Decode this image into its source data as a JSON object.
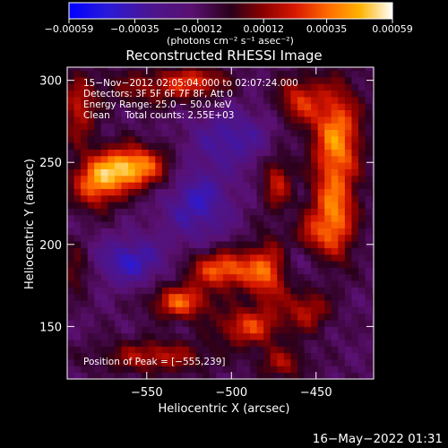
{
  "chart_data": {
    "type": "heatmap",
    "title": "Reconstructed RHESSI Image",
    "xlabel": "Heliocentric X (arcsec)",
    "ylabel": "Heliocentric Y (arcsec)",
    "xlim": [
      -597,
      -416
    ],
    "ylim": [
      118,
      308
    ],
    "x_ticks": [
      -550,
      -500,
      -450
    ],
    "x_tick_labels": [
      "−550",
      "−500",
      "−450"
    ],
    "y_ticks": [
      150,
      200,
      250,
      300
    ],
    "y_tick_labels": [
      "150",
      "200",
      "250",
      "300"
    ],
    "grid": false,
    "colorbar": {
      "colormap": "rhessi-blue-purple-red-yellow-white",
      "range": [
        -0.00059,
        0.00059
      ],
      "ticks": [
        -0.00059,
        -0.00035,
        -0.00012,
        0.00012,
        0.00035,
        0.00059
      ],
      "tick_labels": [
        "−0.00059",
        "−0.00035",
        "−0.00012",
        "0.00012",
        "0.00035",
        "0.00059"
      ],
      "units": "(photons cm⁻² s⁻¹ asec⁻²)",
      "placement": "top"
    },
    "annotations": [
      "15−Nov−2012 02:05:04.000 to 02:07:24.000",
      "Detectors: 3F 5F 6F 7F 8F, Att 0",
      "Energy Range: 25.0 − 50.0 keV",
      "Clean     Total counts: 2.55E+03"
    ],
    "peak_label": "Position of Peak = [−555,239]",
    "peak": [
      -555,
      239
    ],
    "sources": [
      {
        "x": -560,
        "y": 247,
        "amp": 0.00059,
        "sx": 15,
        "sy": 9
      },
      {
        "x": -580,
        "y": 236,
        "amp": 0.0004,
        "sx": 10,
        "sy": 10
      },
      {
        "x": -590,
        "y": 282,
        "amp": 0.0003,
        "sx": 7,
        "sy": 14
      },
      {
        "x": -592,
        "y": 185,
        "amp": 0.0002,
        "sx": 6,
        "sy": 10
      },
      {
        "x": -545,
        "y": 296,
        "amp": 0.00022,
        "sx": 22,
        "sy": 8
      },
      {
        "x": -520,
        "y": 300,
        "amp": 0.00026,
        "sx": 12,
        "sy": 6
      },
      {
        "x": -505,
        "y": 185,
        "amp": 0.00045,
        "sx": 14,
        "sy": 8
      },
      {
        "x": -478,
        "y": 183,
        "amp": 0.00038,
        "sx": 9,
        "sy": 14
      },
      {
        "x": -530,
        "y": 165,
        "amp": 0.00042,
        "sx": 12,
        "sy": 7
      },
      {
        "x": -490,
        "y": 150,
        "amp": 0.00036,
        "sx": 13,
        "sy": 8
      },
      {
        "x": -455,
        "y": 160,
        "amp": 0.00028,
        "sx": 9,
        "sy": 9
      },
      {
        "x": -545,
        "y": 132,
        "amp": 0.00028,
        "sx": 22,
        "sy": 7
      },
      {
        "x": -470,
        "y": 128,
        "amp": 0.00024,
        "sx": 10,
        "sy": 7
      },
      {
        "x": -438,
        "y": 265,
        "amp": 0.0005,
        "sx": 10,
        "sy": 22
      },
      {
        "x": -440,
        "y": 215,
        "amp": 0.00046,
        "sx": 9,
        "sy": 18
      },
      {
        "x": -460,
        "y": 288,
        "amp": 0.00032,
        "sx": 9,
        "sy": 10
      },
      {
        "x": -473,
        "y": 238,
        "amp": 0.0003,
        "sx": 6,
        "sy": 12
      },
      {
        "x": -455,
        "y": 205,
        "amp": 0.00022,
        "sx": 6,
        "sy": 8
      },
      {
        "x": -520,
        "y": 225,
        "amp": -0.00028,
        "sx": 14,
        "sy": 16
      },
      {
        "x": -560,
        "y": 190,
        "amp": -0.0003,
        "sx": 14,
        "sy": 10
      },
      {
        "x": -500,
        "y": 265,
        "amp": -0.00024,
        "sx": 16,
        "sy": 12
      },
      {
        "x": -460,
        "y": 190,
        "amp": -0.00012,
        "sx": 10,
        "sy": 10
      }
    ]
  },
  "timestamp": "16−May−2022 01:31"
}
